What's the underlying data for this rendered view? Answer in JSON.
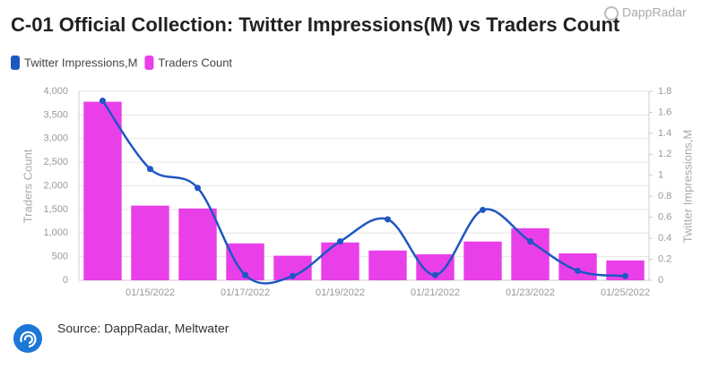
{
  "chart_data": {
    "type": "bar-line",
    "title": "C-01 Official Collection: Twitter Impressions(M) vs Traders Count",
    "brand": "DappRadar",
    "source": "Source: DappRadar, Meltwater",
    "y_label": "Traders Count",
    "y2_label": "Twitter Impressions,M",
    "categories": [
      null,
      "01/15/2022",
      null,
      "01/17/2022",
      null,
      "01/19/2022",
      null,
      "01/21/2022",
      null,
      "01/23/2022",
      null,
      "01/25/2022"
    ],
    "series": [
      {
        "name": "Twitter Impressions,M",
        "type": "line",
        "axis": "y2",
        "color": "#1f57c3",
        "values": [
          1.71,
          1.06,
          0.88,
          0.05,
          0.04,
          0.37,
          0.58,
          0.05,
          0.67,
          0.37,
          0.09,
          0.04
        ]
      },
      {
        "name": "Traders Count",
        "type": "bar",
        "axis": "y",
        "color": "#e93fe9",
        "values": [
          3780,
          1580,
          1520,
          780,
          520,
          800,
          630,
          550,
          820,
          1100,
          570,
          420
        ]
      }
    ],
    "ylim": [
      0,
      4000
    ],
    "yticks": [
      0,
      500,
      {
        "value": 1000,
        "label": "1,000"
      },
      {
        "value": 1500,
        "label": "1,500"
      },
      {
        "value": 2000,
        "label": "2,000"
      },
      {
        "value": 2500,
        "label": "2,500"
      },
      {
        "value": 3000,
        "label": "3,000"
      },
      {
        "value": 3500,
        "label": "3,500"
      },
      {
        "value": 4000,
        "label": "4,000"
      }
    ],
    "y2lim": [
      0,
      1.8
    ],
    "y2ticks": [
      0,
      0.2,
      0.4,
      0.6,
      0.8,
      1,
      1.2,
      1.4,
      1.6,
      1.8
    ],
    "grid": true
  }
}
